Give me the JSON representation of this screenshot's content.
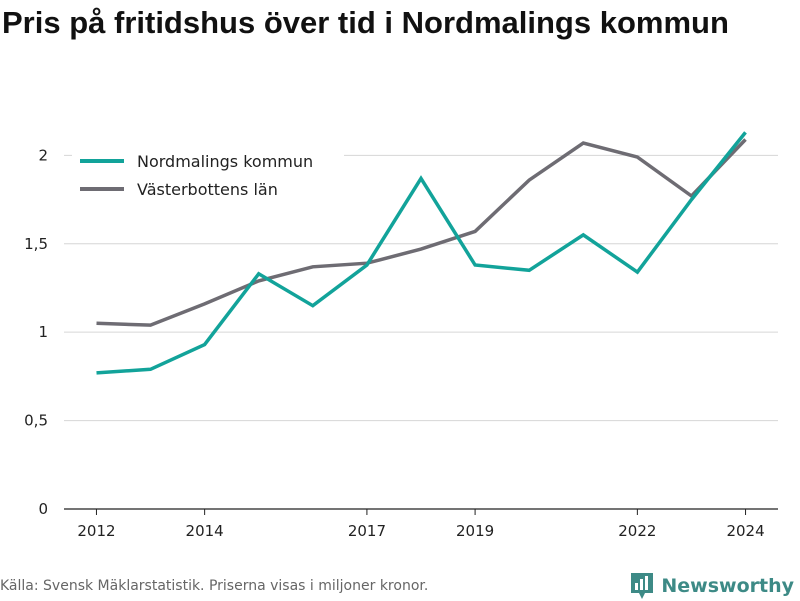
{
  "chart_data": {
    "type": "line",
    "title": "Pris på fritidshus över tid i Nordmalings kommun",
    "xlabel": "",
    "ylabel": "",
    "x": [
      2012,
      2013,
      2014,
      2015,
      2016,
      2017,
      2018,
      2019,
      2020,
      2021,
      2022,
      2023,
      2024
    ],
    "x_ticks": [
      2012,
      2014,
      2017,
      2019,
      2022,
      2024
    ],
    "y_ticks": [
      0,
      0.5,
      1,
      1.5,
      2
    ],
    "y_tick_labels": [
      "0",
      "0,5",
      "1",
      "1,5",
      "2"
    ],
    "ylim": [
      0,
      2.2
    ],
    "grid": true,
    "legend_position": "top-left",
    "series": [
      {
        "name": "Nordmalings kommun",
        "color": "#12a39a",
        "values": [
          0.77,
          0.79,
          0.93,
          1.33,
          1.15,
          1.38,
          1.87,
          1.38,
          1.35,
          1.55,
          1.34,
          1.75,
          2.13
        ]
      },
      {
        "name": "Västerbottens län",
        "color": "#6e6c73",
        "values": [
          1.05,
          1.04,
          1.16,
          1.29,
          1.37,
          1.39,
          1.47,
          1.57,
          1.86,
          2.07,
          1.99,
          1.77,
          2.09
        ]
      }
    ]
  },
  "footer": {
    "source": "Källa: Svensk Mäklarstatistik. Priserna visas i miljoner kronor.",
    "brand": "Newsworthy",
    "brand_color": "#3d8a86",
    "brand_icon": "bar-chart-pin-icon"
  }
}
